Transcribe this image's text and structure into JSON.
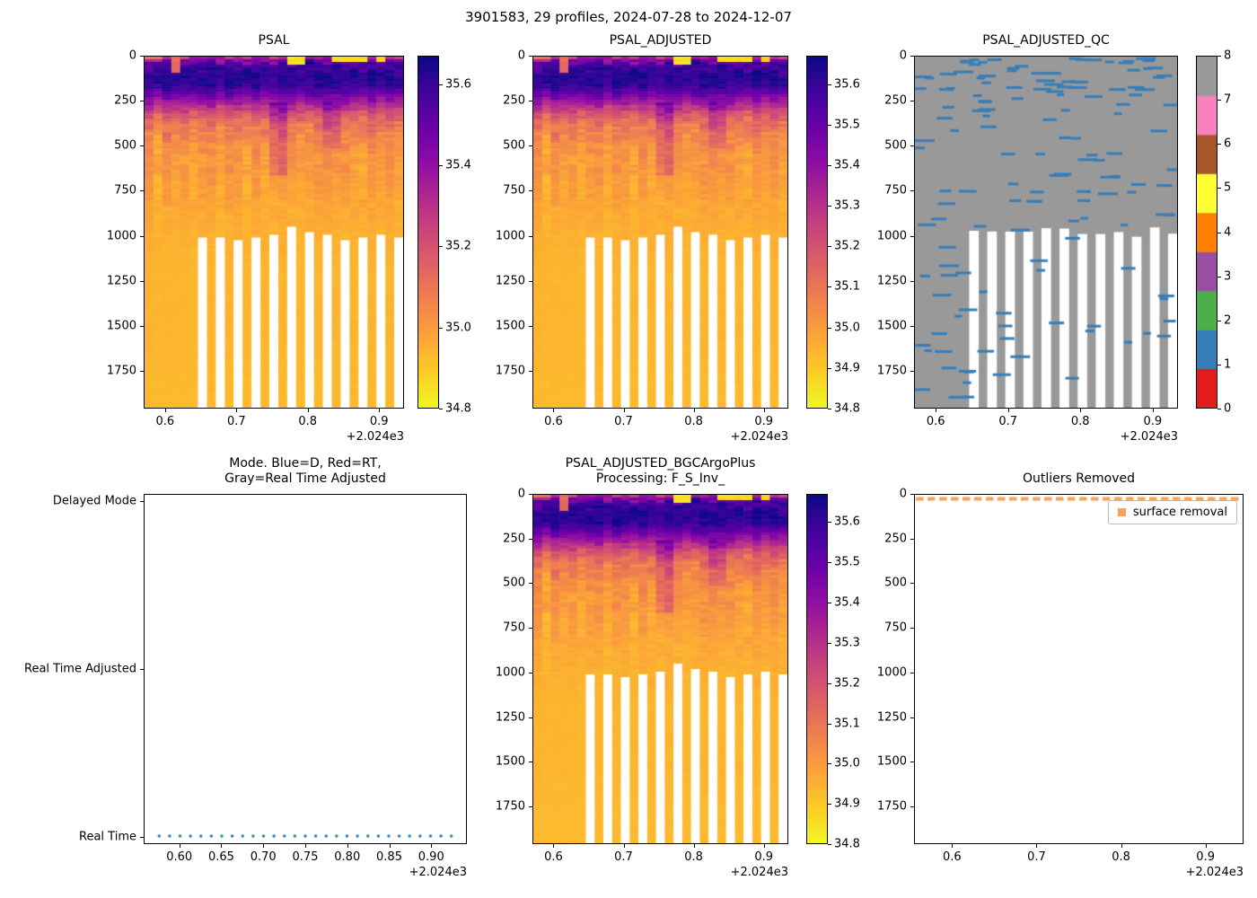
{
  "figure": {
    "title": "3901583, 29 profiles, 2024-07-28 to 2024-12-07"
  },
  "palettes": {
    "plasma_stops": [
      "#0d0887",
      "#41049d",
      "#6a00a8",
      "#8f0da4",
      "#b12a90",
      "#cc4778",
      "#e16462",
      "#f2844b",
      "#fca636",
      "#fcce25",
      "#f0f921"
    ],
    "qc_set1": [
      "#e41a1c",
      "#377eb8",
      "#4daf4a",
      "#984ea3",
      "#ff7f00",
      "#ffff33",
      "#a65628",
      "#f781bf",
      "#999999"
    ],
    "mode_point_blue": "#1f77b4",
    "outlier_orange": "#f7a254"
  },
  "chart_data": [
    {
      "id": "psal",
      "type": "heatmap",
      "title": "PSAL",
      "x_range": [
        2024.57,
        2024.935
      ],
      "y_range": [
        0,
        1960
      ],
      "x_ticks": [
        2024.6,
        2024.7,
        2024.8,
        2024.9
      ],
      "x_tick_labels": [
        "0.6",
        "0.7",
        "0.8",
        "0.9"
      ],
      "x_label_offset": "+2.024e3",
      "y_ticks": [
        0,
        250,
        500,
        750,
        1000,
        1250,
        1500,
        1750
      ],
      "n_profiles": 29,
      "colorbar": {
        "vmin": 34.8,
        "vmax": 35.67,
        "ticks": [
          34.8,
          35.0,
          35.2,
          35.4,
          35.6
        ],
        "tick_labels": [
          "34.8",
          "35.0",
          "35.2",
          "35.4",
          "35.6"
        ]
      },
      "profile_depths": [
        0,
        15,
        30,
        60,
        100,
        150,
        200,
        250,
        300,
        350,
        420,
        500,
        600,
        750,
        900,
        1000,
        1200,
        1500,
        1960
      ],
      "profile_salinity": [
        35.25,
        35.4,
        35.5,
        35.58,
        35.62,
        35.62,
        35.52,
        35.38,
        35.24,
        35.14,
        35.07,
        35.02,
        35.0,
        34.98,
        34.96,
        34.95,
        34.94,
        34.94,
        34.93
      ],
      "surface_anomalies": [
        {
          "cols": [
            0,
            1
          ],
          "max_depth": 20,
          "value": 35.1
        },
        {
          "cols": [
            3
          ],
          "max_depth": 90,
          "value": 35.12
        },
        {
          "cols": [
            16,
            17
          ],
          "max_depth": 40,
          "value": 34.84
        },
        {
          "cols": [
            21,
            22,
            23,
            24
          ],
          "max_depth": 30,
          "value": 34.86
        },
        {
          "cols": [
            26
          ],
          "max_depth": 25,
          "value": 34.9
        }
      ],
      "column_anomalies": [
        {
          "cols": [
            14,
            15
          ],
          "depth_min": 250,
          "depth_max": 660,
          "delta": 0.12
        },
        {
          "cols": [
            20,
            21
          ],
          "depth_min": 250,
          "depth_max": 520,
          "delta": 0.08
        }
      ],
      "shallow_profiles": [
        6,
        8,
        10,
        12,
        14,
        16,
        18,
        20,
        22,
        24,
        26,
        28
      ],
      "shallow_depth": 985,
      "seed": 11
    },
    {
      "id": "psal_adjusted",
      "type": "heatmap",
      "title": "PSAL_ADJUSTED",
      "x_range": [
        2024.57,
        2024.935
      ],
      "y_range": [
        0,
        1960
      ],
      "x_ticks": [
        2024.6,
        2024.7,
        2024.8,
        2024.9
      ],
      "x_tick_labels": [
        "0.6",
        "0.7",
        "0.8",
        "0.9"
      ],
      "x_label_offset": "+2.024e3",
      "y_ticks": [
        0,
        250,
        500,
        750,
        1000,
        1250,
        1500,
        1750
      ],
      "n_profiles": 29,
      "colorbar": {
        "vmin": 34.8,
        "vmax": 35.67,
        "ticks": [
          34.8,
          34.9,
          35.0,
          35.1,
          35.2,
          35.3,
          35.4,
          35.5,
          35.6
        ],
        "tick_labels": [
          "34.8",
          "34.9",
          "35.0",
          "35.1",
          "35.2",
          "35.3",
          "35.4",
          "35.5",
          "35.6"
        ]
      },
      "profile_depths": [
        0,
        15,
        30,
        60,
        100,
        150,
        200,
        250,
        300,
        350,
        420,
        500,
        600,
        750,
        900,
        1000,
        1200,
        1500,
        1960
      ],
      "profile_salinity": [
        35.25,
        35.4,
        35.5,
        35.58,
        35.62,
        35.62,
        35.52,
        35.38,
        35.24,
        35.14,
        35.07,
        35.02,
        35.0,
        34.98,
        34.96,
        34.95,
        34.94,
        34.94,
        34.93
      ],
      "surface_anomalies": [
        {
          "cols": [
            0,
            1
          ],
          "max_depth": 20,
          "value": 35.1
        },
        {
          "cols": [
            3
          ],
          "max_depth": 90,
          "value": 35.12
        },
        {
          "cols": [
            16,
            17
          ],
          "max_depth": 40,
          "value": 34.84
        },
        {
          "cols": [
            21,
            22,
            23,
            24
          ],
          "max_depth": 30,
          "value": 34.86
        },
        {
          "cols": [
            26
          ],
          "max_depth": 25,
          "value": 34.9
        }
      ],
      "column_anomalies": [
        {
          "cols": [
            14,
            15
          ],
          "depth_min": 250,
          "depth_max": 660,
          "delta": 0.12
        },
        {
          "cols": [
            20,
            21
          ],
          "depth_min": 250,
          "depth_max": 520,
          "delta": 0.08
        }
      ],
      "shallow_profiles": [
        6,
        8,
        10,
        12,
        14,
        16,
        18,
        20,
        22,
        24,
        26,
        28
      ],
      "shallow_depth": 985,
      "seed": 11
    },
    {
      "id": "psal_adjusted_qc",
      "type": "qc_heatmap",
      "title": "PSAL_ADJUSTED_QC",
      "x_range": [
        2024.57,
        2024.935
      ],
      "y_range": [
        0,
        1960
      ],
      "x_ticks": [
        2024.6,
        2024.7,
        2024.8,
        2024.9
      ],
      "x_tick_labels": [
        "0.6",
        "0.7",
        "0.8",
        "0.9"
      ],
      "x_label_offset": "+2.024e3",
      "y_ticks": [
        0,
        250,
        500,
        750,
        1000,
        1250,
        1500,
        1750
      ],
      "n_profiles": 29,
      "background_qc": 8,
      "flag_qc": 1,
      "n_flags": 135,
      "colorbar": {
        "ticks": [
          0,
          1,
          2,
          3,
          4,
          5,
          6,
          7,
          8
        ],
        "tick_labels": [
          "0",
          "1",
          "2",
          "3",
          "4",
          "5",
          "6",
          "7",
          "8"
        ]
      },
      "shallow_profiles": [
        6,
        8,
        10,
        12,
        14,
        16,
        18,
        20,
        22,
        24,
        26,
        28
      ],
      "shallow_depth": 985,
      "seed": 5
    },
    {
      "id": "mode",
      "type": "category_scatter",
      "title_lines": [
        "Mode. Blue=D, Red=RT,",
        "Gray=Real Time Adjusted"
      ],
      "x_range": [
        2024.5575,
        2024.9425
      ],
      "x_ticks": [
        2024.6,
        2024.65,
        2024.7,
        2024.75,
        2024.8,
        2024.85,
        2024.9
      ],
      "x_tick_labels": [
        "0.60",
        "0.65",
        "0.70",
        "0.75",
        "0.80",
        "0.85",
        "0.90"
      ],
      "x_label_offset": "+2.024e3",
      "y_categories": [
        "Delayed Mode",
        "Real Time Adjusted",
        "Real Time"
      ],
      "points_category": "Real Time",
      "points_count": 29,
      "points_x_start": 2024.575,
      "points_x_end": 2024.925
    },
    {
      "id": "psal_adjusted_bgc",
      "type": "heatmap",
      "title_lines": [
        "PSAL_ADJUSTED_BGCArgoPlus",
        "Processing: F_S_Inv_"
      ],
      "x_range": [
        2024.57,
        2024.935
      ],
      "y_range": [
        0,
        1960
      ],
      "x_ticks": [
        2024.6,
        2024.7,
        2024.8,
        2024.9
      ],
      "x_tick_labels": [
        "0.6",
        "0.7",
        "0.8",
        "0.9"
      ],
      "x_label_offset": "+2.024e3",
      "y_ticks": [
        0,
        250,
        500,
        750,
        1000,
        1250,
        1500,
        1750
      ],
      "n_profiles": 29,
      "colorbar": {
        "vmin": 34.8,
        "vmax": 35.67,
        "ticks": [
          34.8,
          34.9,
          35.0,
          35.1,
          35.2,
          35.3,
          35.4,
          35.5,
          35.6
        ],
        "tick_labels": [
          "34.8",
          "34.9",
          "35.0",
          "35.1",
          "35.2",
          "35.3",
          "35.4",
          "35.5",
          "35.6"
        ]
      },
      "profile_depths": [
        0,
        15,
        30,
        60,
        100,
        150,
        200,
        250,
        300,
        350,
        420,
        500,
        600,
        750,
        900,
        1000,
        1200,
        1500,
        1960
      ],
      "profile_salinity": [
        35.25,
        35.4,
        35.5,
        35.58,
        35.62,
        35.62,
        35.52,
        35.38,
        35.24,
        35.14,
        35.07,
        35.02,
        35.0,
        34.98,
        34.96,
        34.95,
        34.94,
        34.94,
        34.93
      ],
      "surface_anomalies": [
        {
          "cols": [
            0,
            1
          ],
          "max_depth": 20,
          "value": 35.1
        },
        {
          "cols": [
            3
          ],
          "max_depth": 90,
          "value": 35.12
        },
        {
          "cols": [
            16,
            17
          ],
          "max_depth": 40,
          "value": 34.84
        },
        {
          "cols": [
            21,
            22,
            23,
            24
          ],
          "max_depth": 30,
          "value": 34.86
        },
        {
          "cols": [
            26
          ],
          "max_depth": 25,
          "value": 34.9
        }
      ],
      "column_anomalies": [
        {
          "cols": [
            14,
            15
          ],
          "depth_min": 250,
          "depth_max": 660,
          "delta": 0.12
        },
        {
          "cols": [
            20,
            21
          ],
          "depth_min": 250,
          "depth_max": 520,
          "delta": 0.08
        }
      ],
      "shallow_profiiles_note": "",
      "shallow_profiles": [
        6,
        8,
        10,
        12,
        14,
        16,
        18,
        20,
        22,
        24,
        26,
        28
      ],
      "shallow_depth": 985,
      "seed": 11
    },
    {
      "id": "outliers_removed",
      "type": "dash_scatter",
      "title": "Outliers Removed",
      "x_range": [
        2024.555,
        2024.945
      ],
      "x_ticks": [
        2024.6,
        2024.7,
        2024.8,
        2024.9
      ],
      "x_tick_labels": [
        "0.6",
        "0.7",
        "0.8",
        "0.9"
      ],
      "x_label_offset": "+2.024e3",
      "y_range": [
        0,
        1960
      ],
      "y_ticks": [
        0,
        250,
        500,
        750,
        1000,
        1250,
        1500,
        1750
      ],
      "legend_label": "surface removal",
      "series": [
        {
          "name": "surface removal",
          "depth": 0,
          "spans_full_width": true
        }
      ]
    }
  ]
}
